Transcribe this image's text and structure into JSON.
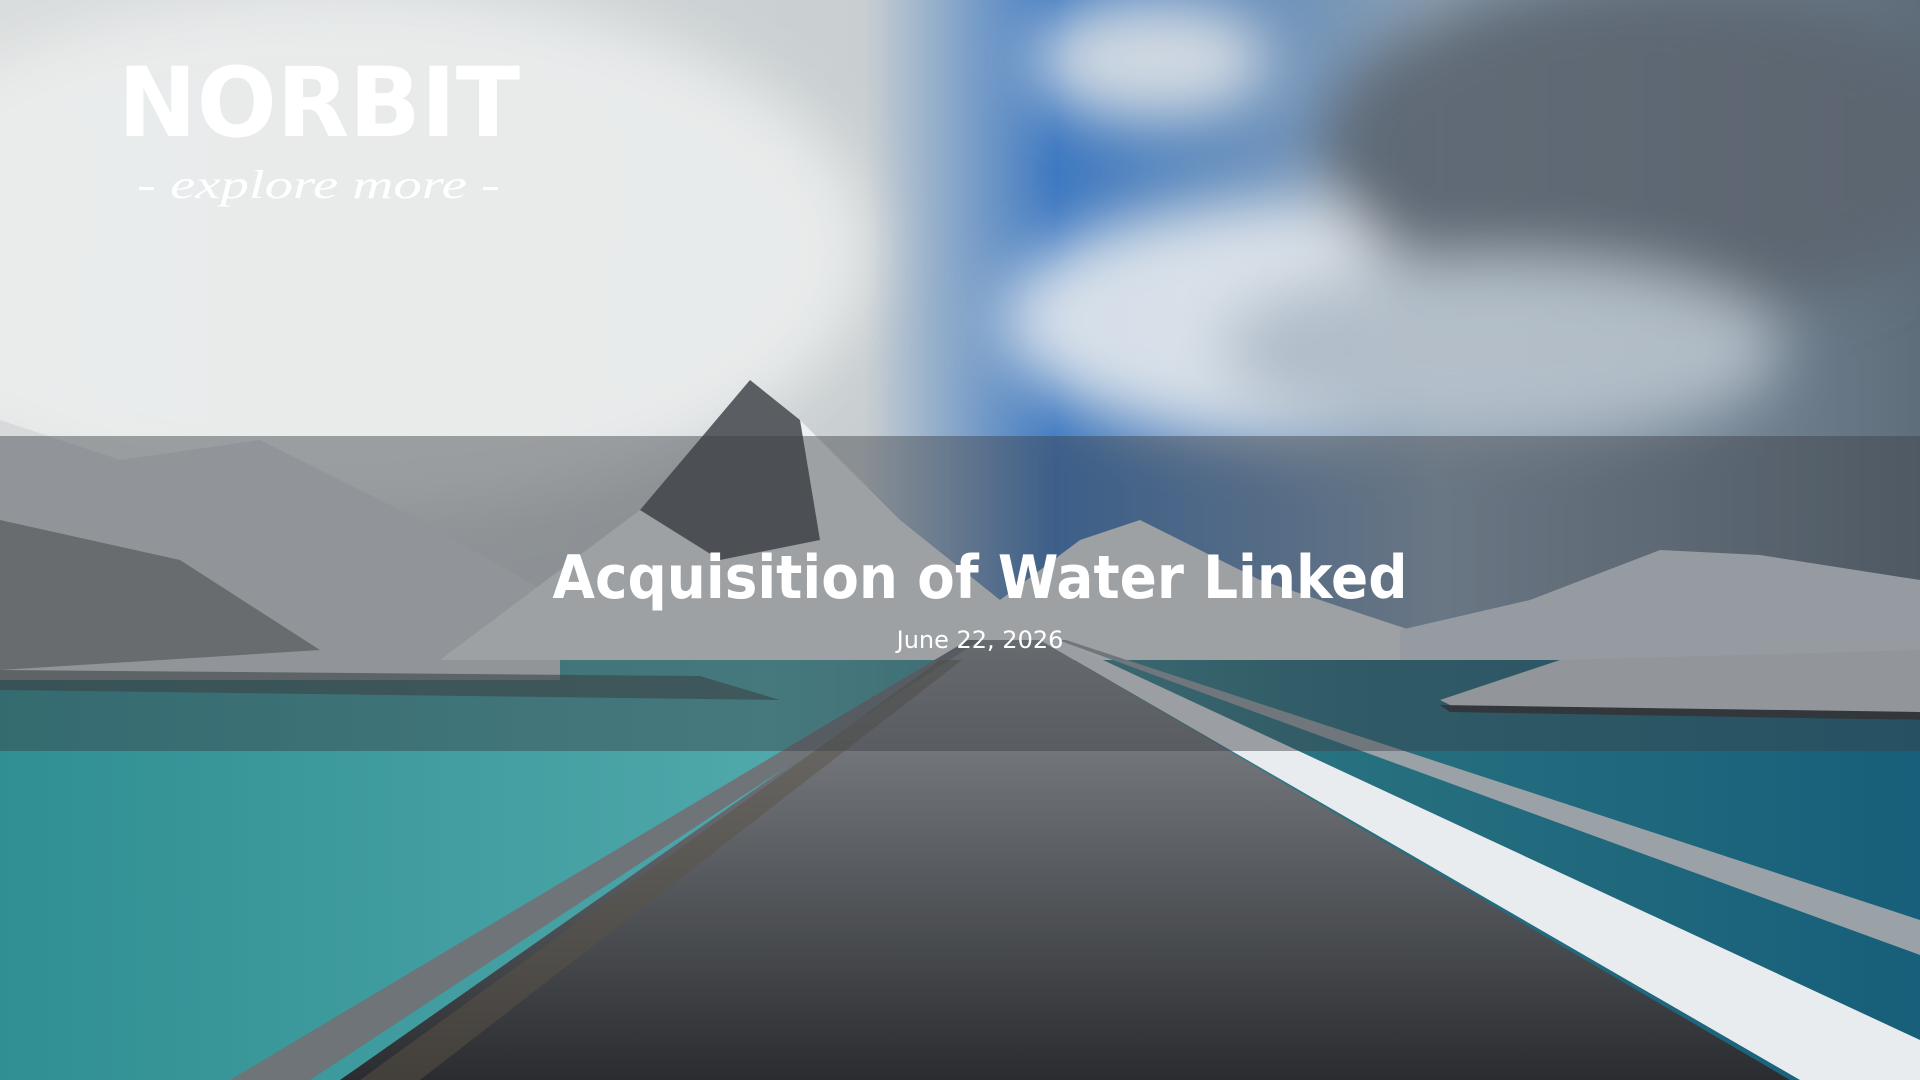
{
  "logo": {
    "name": "NORBIT",
    "tagline": "- explore more -"
  },
  "slide": {
    "title": "Acquisition of Water Linked",
    "date": "June 22, 2026"
  }
}
